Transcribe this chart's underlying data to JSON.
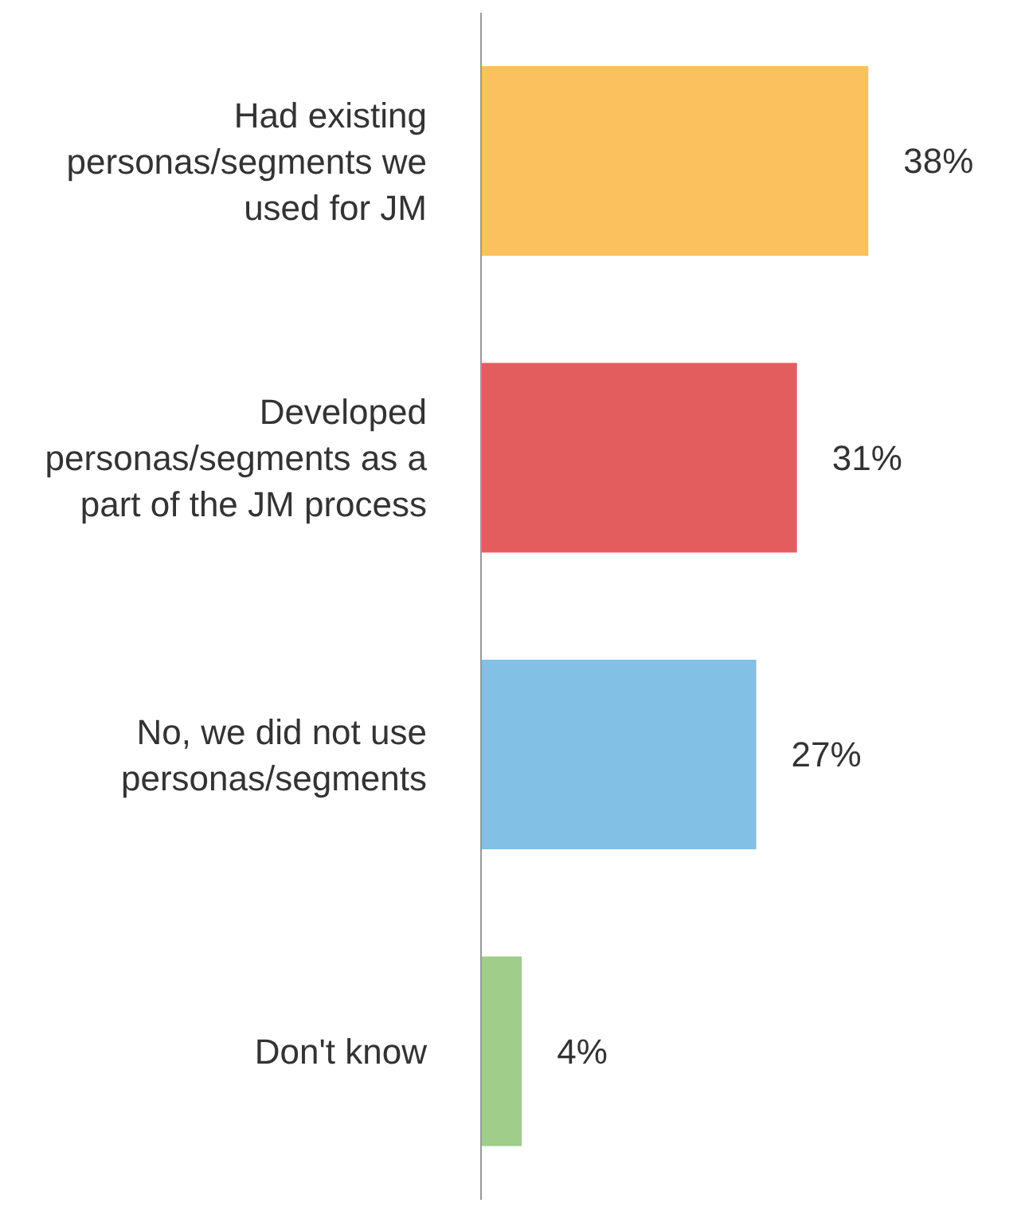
{
  "chart_data": {
    "type": "bar",
    "orientation": "horizontal",
    "categories": [
      "Had existing personas/segments we used for JM",
      "Developed personas/segments as a part of the JM process",
      "No, we did not use personas/segments",
      "Don't know"
    ],
    "values": [
      38,
      31,
      27,
      4
    ],
    "colors": [
      "#fbc15e",
      "#e35d5f",
      "#82c0e6",
      "#a0cd8a"
    ],
    "value_labels": [
      "38%",
      "31%",
      "27%",
      "4%"
    ]
  }
}
